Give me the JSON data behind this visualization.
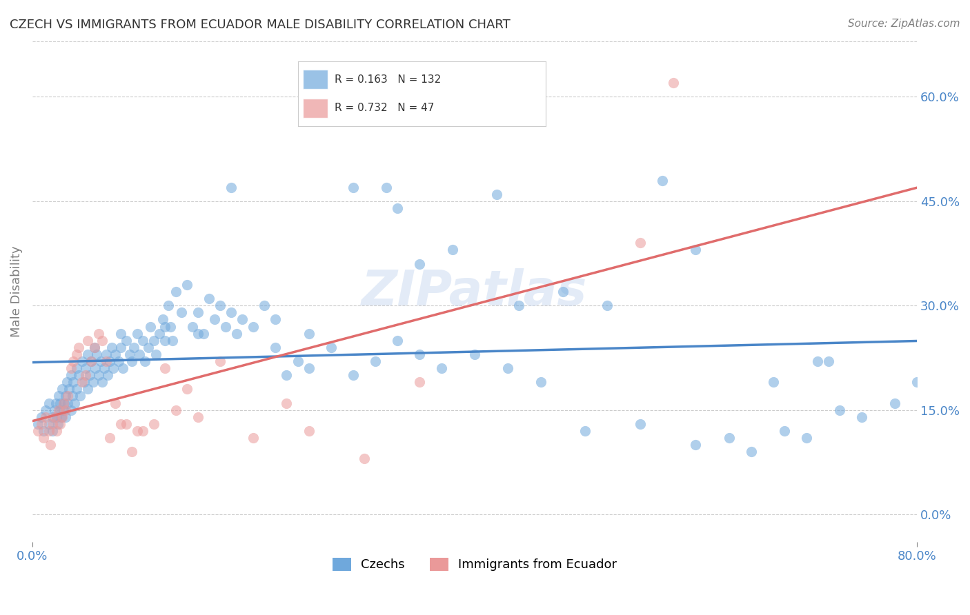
{
  "title": "CZECH VS IMMIGRANTS FROM ECUADOR MALE DISABILITY CORRELATION CHART",
  "source": "Source: ZipAtlas.com",
  "xlabel": "",
  "ylabel": "Male Disability",
  "watermark": "ZIPatlas",
  "legend_entries": [
    {
      "label": "Czechs",
      "color": "#6fa8dc",
      "R": 0.163,
      "N": 132
    },
    {
      "label": "Immigrants from Ecuador",
      "color": "#ea9999",
      "R": 0.732,
      "N": 47
    }
  ],
  "xlim": [
    0.0,
    0.8
  ],
  "ylim": [
    -0.04,
    0.68
  ],
  "yticks": [
    0.0,
    0.15,
    0.3,
    0.45,
    0.6
  ],
  "xticks": [
    0.0,
    0.8
  ],
  "grid_color": "#cccccc",
  "background_color": "#ffffff",
  "czechs_color": "#6fa8dc",
  "ecuador_color": "#ea9999",
  "czechs_line_color": "#4a86c8",
  "ecuador_line_color": "#e06c6c",
  "czechs_x": [
    0.005,
    0.008,
    0.01,
    0.012,
    0.015,
    0.015,
    0.018,
    0.018,
    0.02,
    0.021,
    0.022,
    0.023,
    0.024,
    0.025,
    0.025,
    0.026,
    0.027,
    0.028,
    0.029,
    0.03,
    0.03,
    0.031,
    0.032,
    0.033,
    0.035,
    0.035,
    0.036,
    0.037,
    0.038,
    0.04,
    0.04,
    0.042,
    0.043,
    0.045,
    0.047,
    0.048,
    0.05,
    0.05,
    0.052,
    0.053,
    0.055,
    0.056,
    0.057,
    0.058,
    0.06,
    0.062,
    0.063,
    0.065,
    0.067,
    0.068,
    0.07,
    0.072,
    0.073,
    0.075,
    0.078,
    0.08,
    0.082,
    0.085,
    0.088,
    0.09,
    0.092,
    0.095,
    0.097,
    0.1,
    0.102,
    0.105,
    0.107,
    0.11,
    0.112,
    0.115,
    0.118,
    0.12,
    0.123,
    0.125,
    0.127,
    0.13,
    0.135,
    0.14,
    0.145,
    0.15,
    0.155,
    0.16,
    0.165,
    0.17,
    0.175,
    0.18,
    0.185,
    0.19,
    0.2,
    0.21,
    0.22,
    0.23,
    0.24,
    0.25,
    0.27,
    0.29,
    0.31,
    0.33,
    0.35,
    0.37,
    0.4,
    0.43,
    0.46,
    0.5,
    0.55,
    0.6,
    0.63,
    0.65,
    0.68,
    0.7,
    0.73,
    0.75,
    0.78,
    0.8,
    0.35,
    0.48,
    0.57,
    0.32,
    0.22,
    0.18,
    0.42,
    0.38,
    0.29,
    0.15,
    0.08,
    0.12,
    0.25,
    0.6,
    0.52,
    0.44,
    0.33,
    0.67,
    0.72,
    0.71
  ],
  "czechs_y": [
    0.13,
    0.14,
    0.12,
    0.15,
    0.13,
    0.16,
    0.14,
    0.12,
    0.15,
    0.16,
    0.14,
    0.13,
    0.17,
    0.15,
    0.16,
    0.14,
    0.18,
    0.15,
    0.16,
    0.17,
    0.14,
    0.19,
    0.16,
    0.18,
    0.15,
    0.2,
    0.17,
    0.19,
    0.16,
    0.21,
    0.18,
    0.2,
    0.17,
    0.22,
    0.19,
    0.21,
    0.18,
    0.23,
    0.2,
    0.22,
    0.19,
    0.24,
    0.21,
    0.23,
    0.2,
    0.22,
    0.19,
    0.21,
    0.23,
    0.2,
    0.22,
    0.24,
    0.21,
    0.23,
    0.22,
    0.24,
    0.21,
    0.25,
    0.23,
    0.22,
    0.24,
    0.26,
    0.23,
    0.25,
    0.22,
    0.24,
    0.27,
    0.25,
    0.23,
    0.26,
    0.28,
    0.25,
    0.3,
    0.27,
    0.25,
    0.32,
    0.29,
    0.33,
    0.27,
    0.29,
    0.26,
    0.31,
    0.28,
    0.3,
    0.27,
    0.29,
    0.26,
    0.28,
    0.27,
    0.3,
    0.28,
    0.2,
    0.22,
    0.26,
    0.24,
    0.2,
    0.22,
    0.25,
    0.23,
    0.21,
    0.23,
    0.21,
    0.19,
    0.12,
    0.13,
    0.1,
    0.11,
    0.09,
    0.12,
    0.11,
    0.15,
    0.14,
    0.16,
    0.19,
    0.36,
    0.32,
    0.48,
    0.47,
    0.24,
    0.47,
    0.46,
    0.38,
    0.47,
    0.26,
    0.26,
    0.27,
    0.21,
    0.38,
    0.3,
    0.3,
    0.44,
    0.19,
    0.22,
    0.22
  ],
  "ecuador_x": [
    0.005,
    0.008,
    0.01,
    0.012,
    0.015,
    0.016,
    0.018,
    0.02,
    0.022,
    0.024,
    0.025,
    0.027,
    0.028,
    0.03,
    0.032,
    0.035,
    0.037,
    0.04,
    0.042,
    0.045,
    0.048,
    0.05,
    0.053,
    0.056,
    0.06,
    0.063,
    0.067,
    0.07,
    0.075,
    0.08,
    0.085,
    0.09,
    0.095,
    0.1,
    0.11,
    0.12,
    0.13,
    0.14,
    0.15,
    0.17,
    0.2,
    0.23,
    0.25,
    0.3,
    0.55,
    0.58,
    0.35
  ],
  "ecuador_y": [
    0.12,
    0.13,
    0.11,
    0.14,
    0.12,
    0.1,
    0.13,
    0.14,
    0.12,
    0.15,
    0.13,
    0.14,
    0.16,
    0.15,
    0.17,
    0.21,
    0.22,
    0.23,
    0.24,
    0.19,
    0.2,
    0.25,
    0.22,
    0.24,
    0.26,
    0.25,
    0.22,
    0.11,
    0.16,
    0.13,
    0.13,
    0.09,
    0.12,
    0.12,
    0.13,
    0.21,
    0.15,
    0.18,
    0.14,
    0.22,
    0.11,
    0.16,
    0.12,
    0.08,
    0.39,
    0.62,
    0.19
  ]
}
